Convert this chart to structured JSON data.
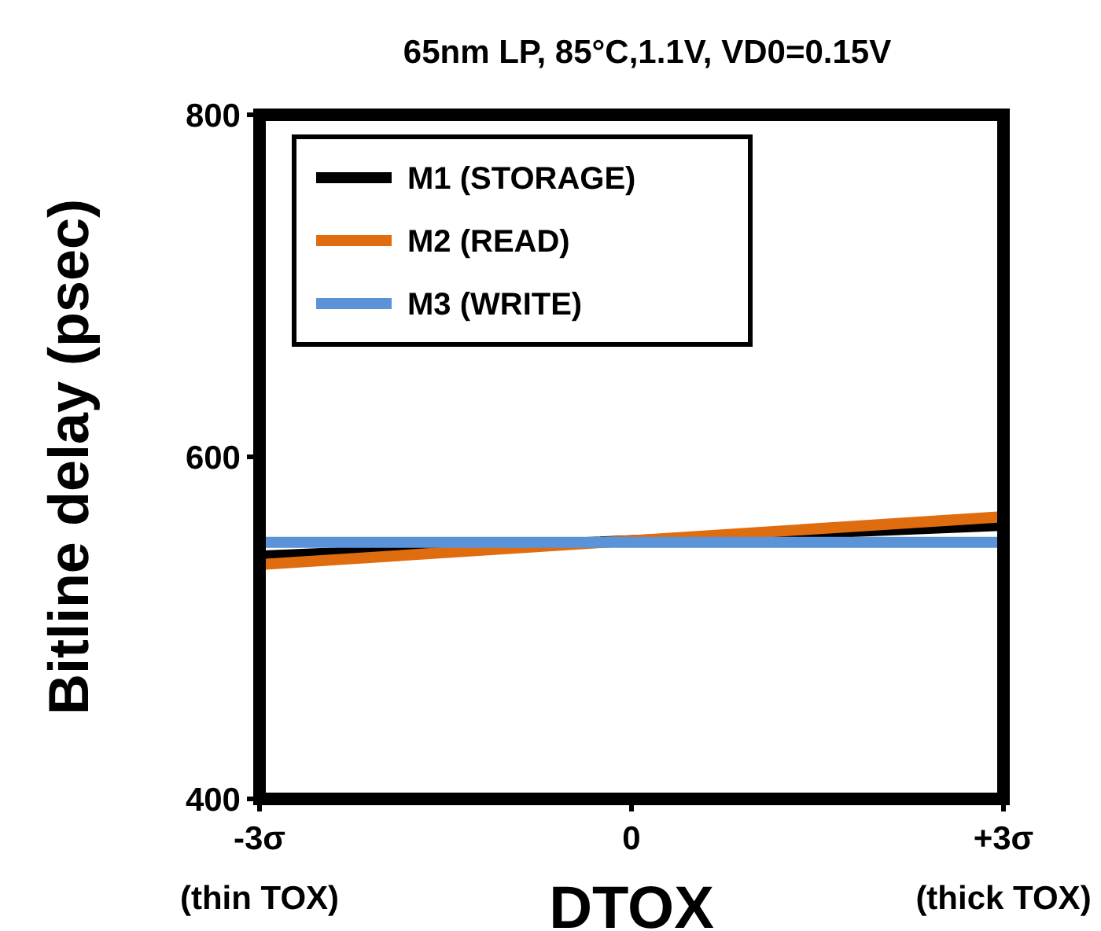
{
  "chart_data": {
    "type": "line",
    "title": "65nm LP, 85°C,1.1V, VD0=0.15V",
    "xlabel": "DTOX",
    "ylabel": "Bitline delay (psec)",
    "x": [
      -3,
      3
    ],
    "series": [
      {
        "name": "M1 (STORAGE)",
        "color": "#000000",
        "values": [
          542,
          560
        ]
      },
      {
        "name": "M2 (READ)",
        "color": "#e06c10",
        "values": [
          537,
          565
        ]
      },
      {
        "name": "M3 (WRITE)",
        "color": "#5b93d8",
        "values": [
          550,
          550
        ]
      }
    ],
    "xlim": [
      -3,
      3
    ],
    "xticks": [
      {
        "value": -3,
        "label": "-3σ\n(thin TOX)"
      },
      0,
      {
        "value": 3,
        "label": "+3σ\n(thick TOX)"
      }
    ],
    "ylim": [
      400,
      800
    ],
    "yticks": [
      400,
      600,
      800
    ],
    "grid": false,
    "legend": "top left",
    "marker": "none",
    "line_style": "solid"
  }
}
